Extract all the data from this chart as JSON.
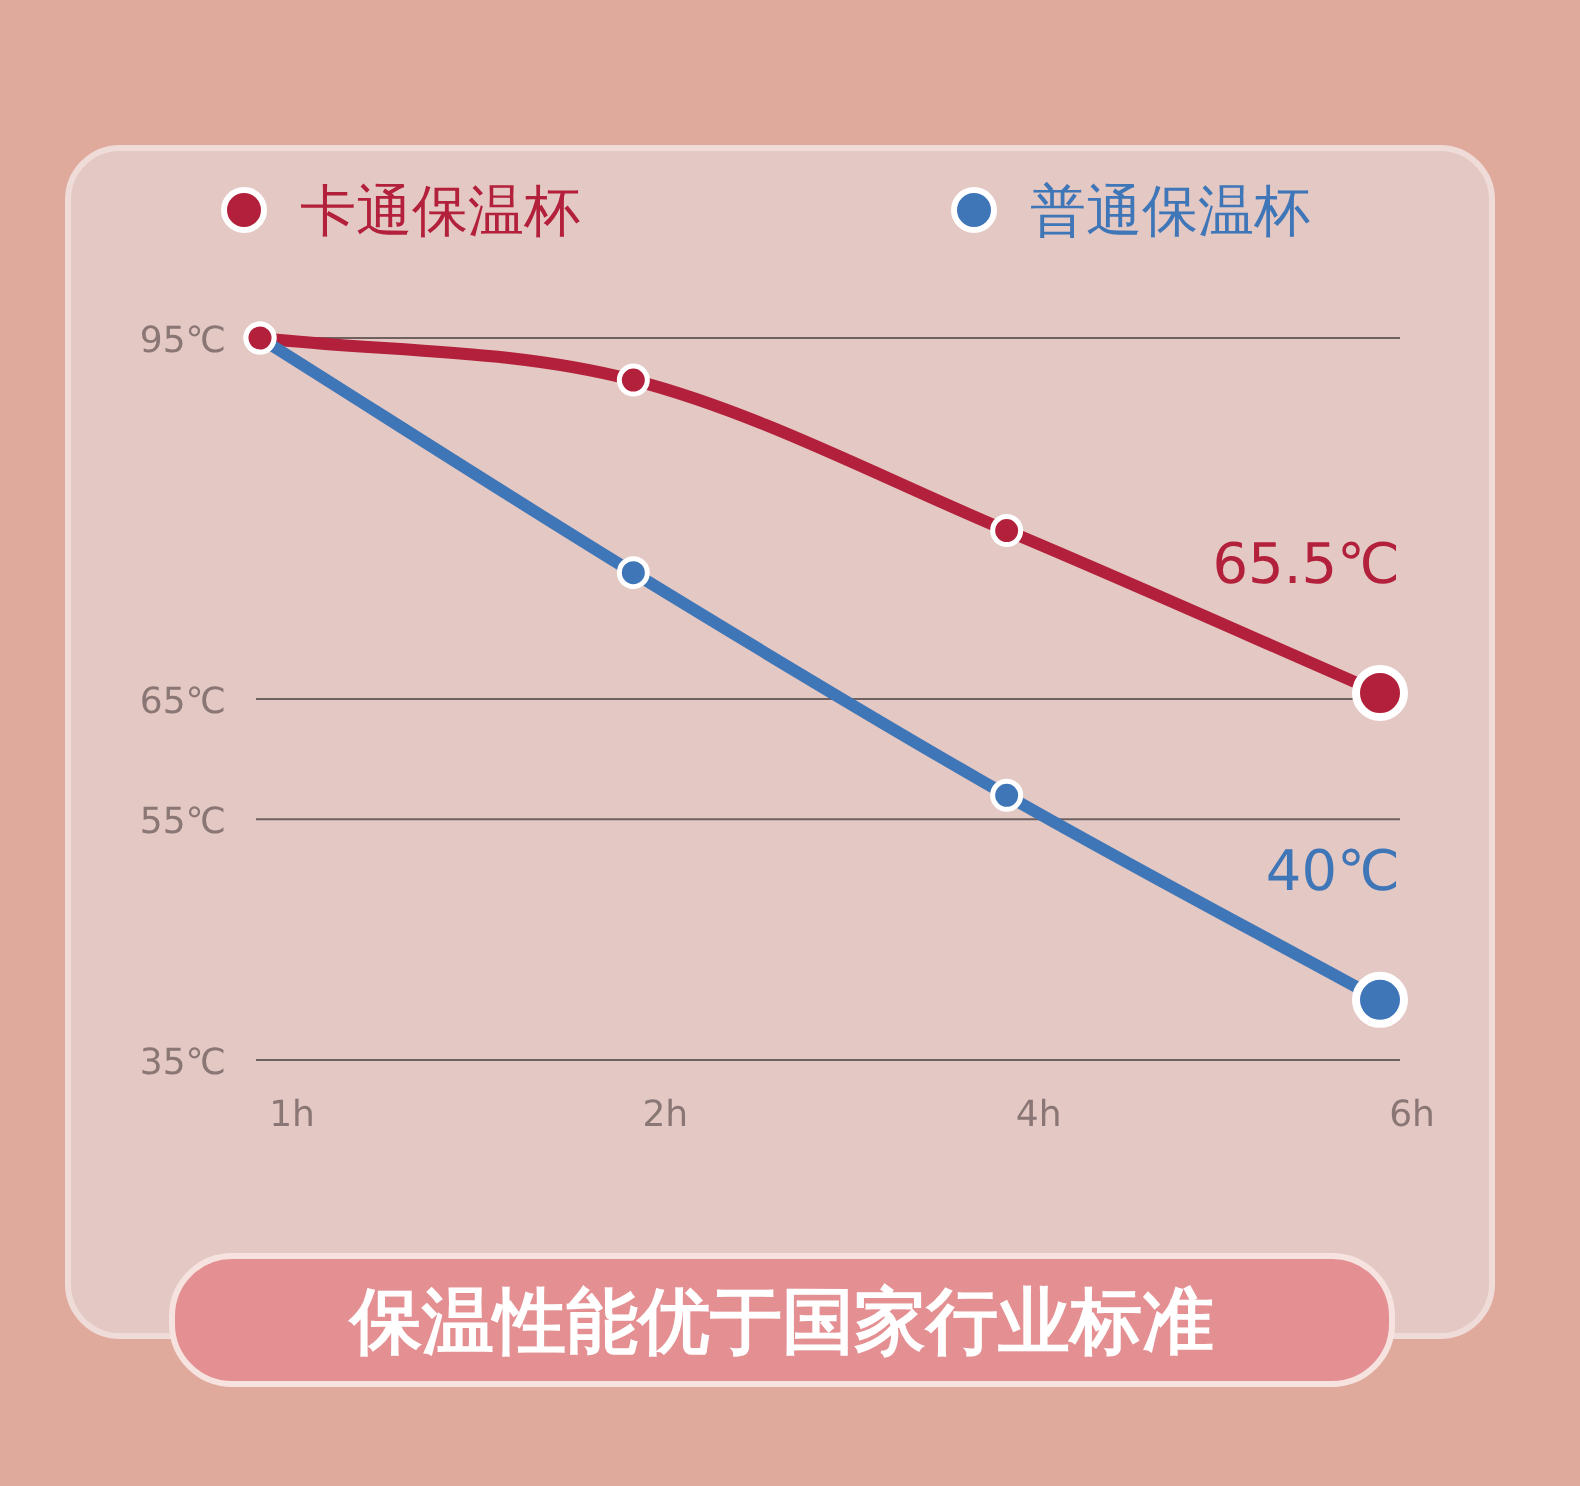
{
  "chart_data": {
    "type": "line",
    "categories": [
      "1h",
      "2h",
      "4h",
      "6h"
    ],
    "series": [
      {
        "name": "卡通保温杯",
        "color": "#b3203b",
        "values": [
          95,
          91.5,
          79,
          65.5
        ],
        "value_labels": [
          null,
          null,
          null,
          "65.5℃"
        ]
      },
      {
        "name": "普通保温杯",
        "color": "#3f76b8",
        "values": [
          95,
          75.5,
          57,
          40
        ],
        "value_labels": [
          null,
          null,
          null,
          "40℃"
        ]
      }
    ],
    "ylim": [
      35,
      95
    ],
    "yticks": [
      {
        "value": 35,
        "label": "35℃"
      },
      {
        "value": 55,
        "label": "55℃"
      },
      {
        "value": 65,
        "label": "65℃"
      },
      {
        "value": 95,
        "label": "95℃"
      }
    ],
    "grid": "y",
    "legend": "top",
    "marker": "circle",
    "annotations": [
      "保温性能优于国家行业标准"
    ]
  }
}
